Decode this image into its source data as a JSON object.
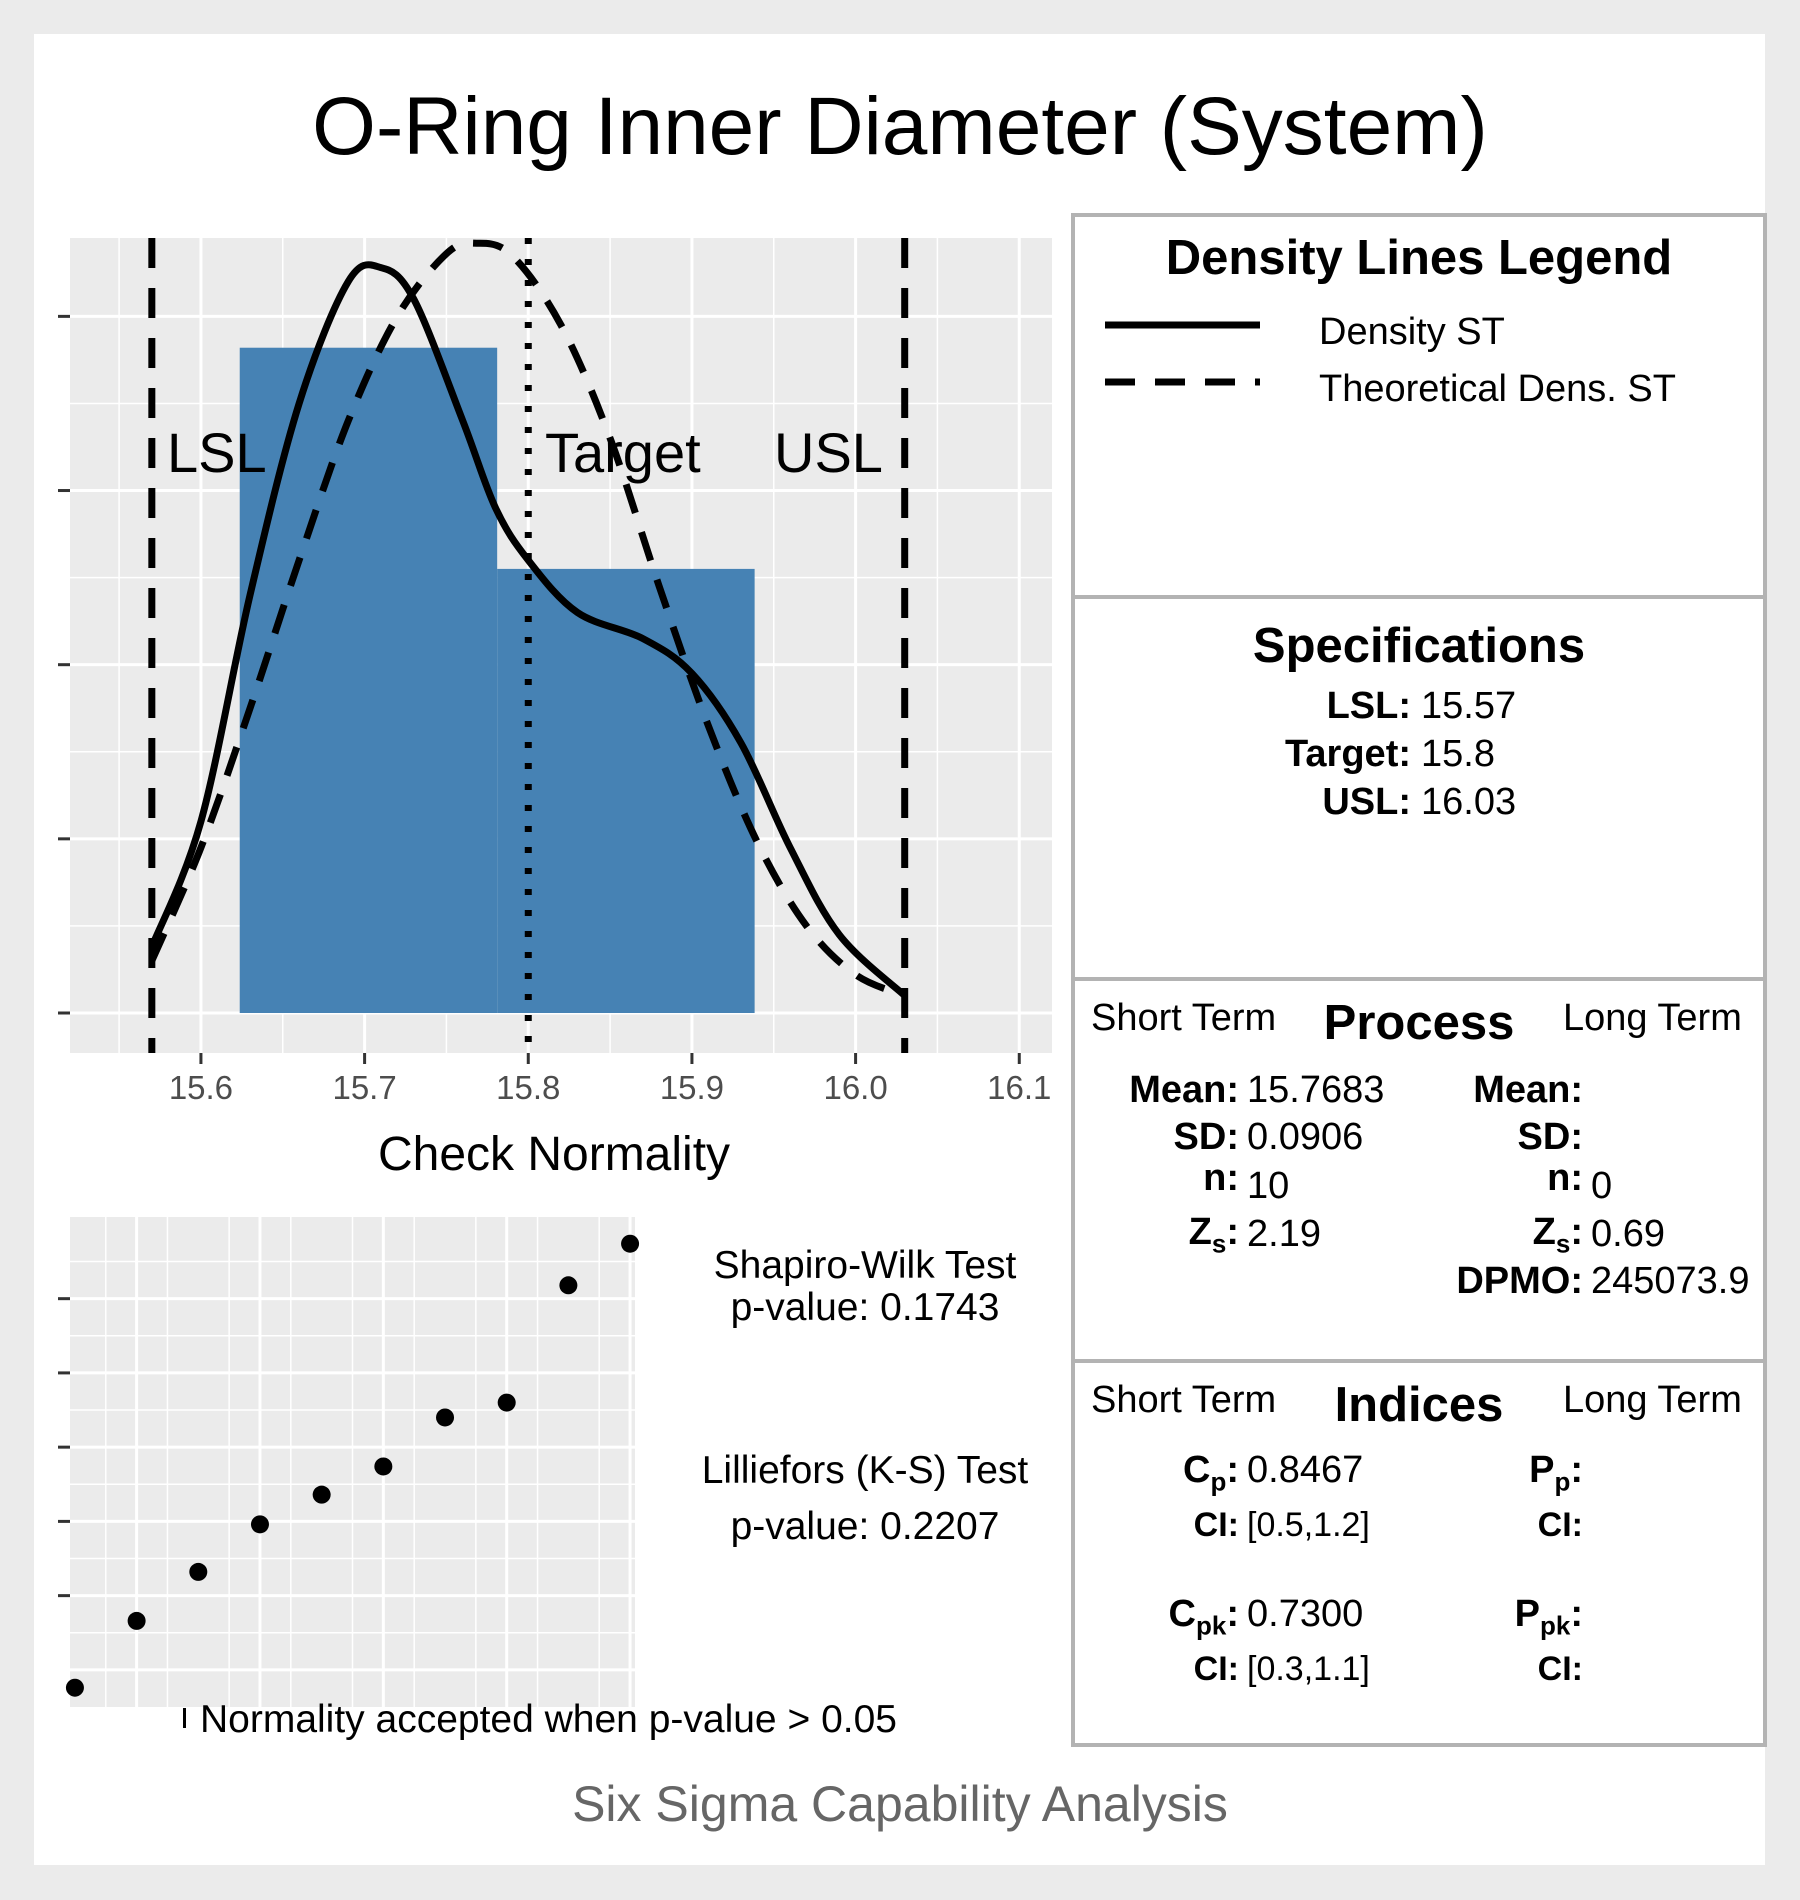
{
  "title": "O-Ring Inner Diameter (System)",
  "footer": "Six Sigma Capability Analysis",
  "chart_data": [
    {
      "type": "histogram",
      "xlabel": "Check Normality",
      "xlim": [
        15.52,
        16.12
      ],
      "x_ticks": [
        "15.6",
        "15.7",
        "15.8",
        "15.9",
        "16.0",
        "16.1"
      ],
      "x_tick_values": [
        15.6,
        15.7,
        15.8,
        15.9,
        16.0,
        16.1
      ],
      "ylim": [
        0,
        4.45
      ],
      "bins": [
        {
          "from": 15.6237,
          "to": 15.781,
          "count": 3.82
        },
        {
          "from": 15.781,
          "to": 15.9383,
          "count": 2.55
        }
      ],
      "spec_lines": [
        {
          "label": "LSL",
          "value": 15.57,
          "style": "dashed"
        },
        {
          "label": "Target",
          "value": 15.8,
          "style": "dotted"
        },
        {
          "label": "USL",
          "value": 16.03,
          "style": "dashed"
        }
      ],
      "series": [
        {
          "name": "Density ST",
          "style": "solid",
          "x": [
            15.57,
            15.6,
            15.63,
            15.66,
            15.69,
            15.71,
            15.73,
            15.76,
            15.78,
            15.8,
            15.83,
            15.87,
            15.9,
            15.93,
            15.96,
            15.99,
            16.03
          ],
          "y": [
            0.38,
            1.1,
            2.4,
            3.5,
            4.2,
            4.28,
            4.1,
            3.4,
            2.9,
            2.6,
            2.3,
            2.15,
            1.95,
            1.55,
            0.95,
            0.45,
            0.1
          ]
        },
        {
          "name": "Theoretical Dens. ST",
          "style": "dashed",
          "x": [
            15.57,
            15.6,
            15.63,
            15.66,
            15.69,
            15.72,
            15.75,
            15.7683,
            15.79,
            15.82,
            15.85,
            15.88,
            15.91,
            15.94,
            15.97,
            16.0,
            16.03
          ],
          "y": [
            0.3,
            0.95,
            1.75,
            2.6,
            3.4,
            4.0,
            4.36,
            4.42,
            4.35,
            3.95,
            3.3,
            2.45,
            1.65,
            0.98,
            0.5,
            0.22,
            0.1
          ]
        }
      ]
    },
    {
      "type": "scatter",
      "title": "Check Normality",
      "x": [
        1,
        2,
        3,
        4,
        5,
        6,
        7,
        8,
        9,
        10
      ],
      "y": [
        -1.62,
        -1.17,
        -0.84,
        -0.52,
        -0.32,
        -0.13,
        0.2,
        0.3,
        1.09,
        1.37
      ]
    }
  ],
  "annotations": {
    "lsl": "LSL",
    "target": "Target",
    "usl": "USL",
    "normality_note": "Normality accepted when p-value > 0.05"
  },
  "tests": {
    "shapiro_line1": "Shapiro-Wilk Test",
    "shapiro_line2": "p-value:  0.1743",
    "lillie_line1": "Lilliefors (K-S) Test",
    "lillie_line2": "p-value:  0.2207"
  },
  "legend": {
    "title": "Density Lines Legend",
    "items": [
      {
        "label": "Density ST",
        "style": "solid"
      },
      {
        "label": "Theoretical Dens. ST",
        "style": "dashed"
      }
    ]
  },
  "specifications": {
    "title": "Specifications",
    "lsl_label": "LSL:",
    "lsl_value": "15.57",
    "target_label": "Target:",
    "target_value": "15.8",
    "usl_label": "USL:",
    "usl_value": "16.03"
  },
  "process": {
    "title": "Process",
    "short_term": "Short Term",
    "long_term": "Long Term",
    "st_mean_label": "Mean:",
    "st_mean": "15.7683",
    "st_sd_label": "SD:",
    "st_sd": "0.0906",
    "st_n_label": "n:",
    "st_n": "10",
    "st_z_label": "Z",
    "st_z_sub": "s",
    "st_z_colon": ":",
    "st_z": "2.19",
    "lt_mean_label": "Mean:",
    "lt_mean": "",
    "lt_sd_label": "SD:",
    "lt_sd": "",
    "lt_n_label": "n:",
    "lt_n": "0",
    "lt_z_label": "Z",
    "lt_z_sub": "s",
    "lt_z_colon": ":",
    "lt_z": "0.69",
    "dpmo_label": "DPMO:",
    "dpmo": "245073.9"
  },
  "indices": {
    "title": "Indices",
    "short_term": "Short Term",
    "long_term": "Long Term",
    "cp_label": "C",
    "cp_sub": "p",
    "cp_colon": ":",
    "cp": "0.8467",
    "cp_ci_label": "CI:",
    "cp_ci": "[0.5,1.2]",
    "cpk_label": "C",
    "cpk_sub": "pk",
    "cpk_colon": ":",
    "cpk": "0.7300",
    "cpk_ci_label": "CI:",
    "cpk_ci": "[0.3,1.1]",
    "pp_label": "P",
    "pp_sub": "p",
    "pp_colon": ":",
    "pp": "",
    "pp_ci_label": "CI:",
    "pp_ci": "",
    "ppk_label": "P",
    "ppk_sub": "pk",
    "ppk_colon": ":",
    "ppk": "",
    "ppk_ci_label": "CI:",
    "ppk_ci": ""
  },
  "colors": {
    "bar_fill": "#4682b4",
    "panel_bg": "#ebebeb",
    "grid": "#ffffff",
    "panel_border": "#b3b3b3"
  }
}
